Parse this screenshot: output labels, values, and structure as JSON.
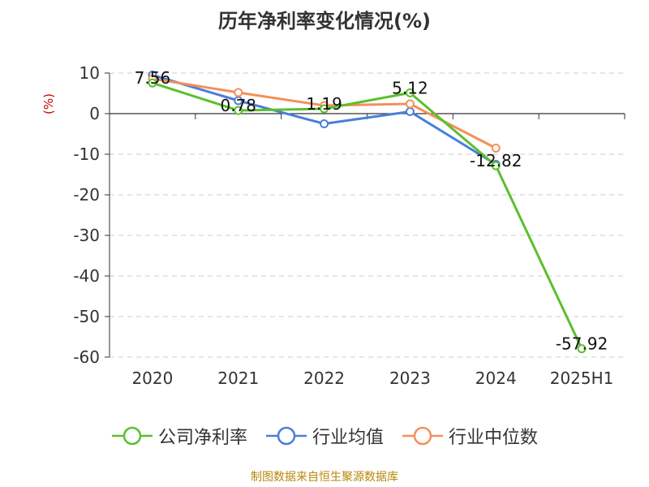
{
  "chart_data": {
    "type": "line",
    "title": "历年净利率变化情况(%)",
    "ylabel": "(%)",
    "categories": [
      "2020",
      "2021",
      "2022",
      "2023",
      "2024",
      "2025H1"
    ],
    "ylim": [
      -60,
      10
    ],
    "yticks": [
      10,
      0,
      -10,
      -20,
      -30,
      -40,
      -50,
      -60
    ],
    "grid": true,
    "legend_position": "bottom",
    "series": [
      {
        "name": "公司净利率",
        "color": "#5ac02d",
        "values": [
          7.56,
          0.78,
          1.19,
          5.12,
          -12.82,
          -57.92
        ],
        "labels": [
          "7.56",
          "0.78",
          "1.19",
          "5.12",
          "-12.82",
          "-57.92"
        ]
      },
      {
        "name": "行业均值",
        "color": "#4a7fd9",
        "values": [
          9.5,
          3.2,
          -2.5,
          0.5,
          -12.5,
          null
        ]
      },
      {
        "name": "行业中位数",
        "color": "#f4905a",
        "values": [
          8.6,
          5.2,
          2.0,
          2.4,
          -8.5,
          null
        ]
      }
    ]
  },
  "footer": "制图数据来自恒生聚源数据库"
}
